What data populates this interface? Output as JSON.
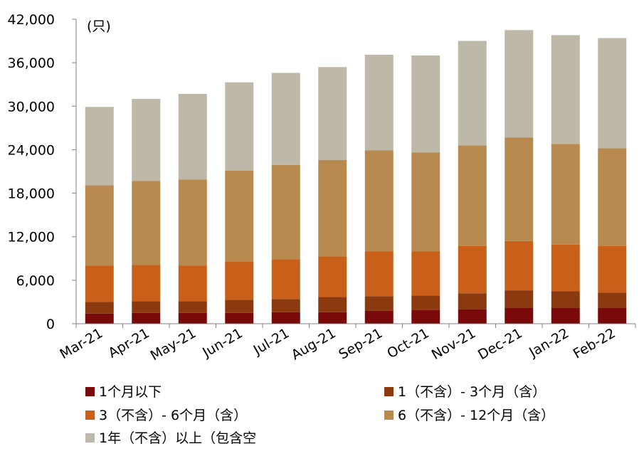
{
  "chart_data": {
    "type": "bar",
    "stacked": true,
    "unit_label": "(只)",
    "categories": [
      "Mar-21",
      "Apr-21",
      "May-21",
      "Jun-21",
      "Jul-21",
      "Aug-21",
      "Sep-21",
      "Oct-21",
      "Nov-21",
      "Dec-21",
      "Jan-22",
      "Feb-22"
    ],
    "y_ticks": [
      "0",
      "6,000",
      "12,000",
      "18,000",
      "24,000",
      "30,000",
      "36,000",
      "42,000"
    ],
    "ylim": [
      0,
      42000
    ],
    "grid": false,
    "legend_position": "bottom",
    "series": [
      {
        "name": "1个月以下",
        "color": "#7a0a0a",
        "values": [
          1400,
          1500,
          1500,
          1500,
          1600,
          1600,
          1800,
          1900,
          2000,
          2200,
          2200,
          2200
        ]
      },
      {
        "name": "1（不含）- 3个月（含）",
        "color": "#8b3a10",
        "values": [
          1600,
          1600,
          1600,
          1800,
          1800,
          2100,
          2000,
          2000,
          2200,
          2400,
          2300,
          2100
        ]
      },
      {
        "name": "3（不含）- 6个月（含）",
        "color": "#c8601a",
        "values": [
          5000,
          5000,
          4900,
          5300,
          5500,
          5600,
          6200,
          6100,
          6500,
          6800,
          6400,
          6400
        ]
      },
      {
        "name": "6（不含）- 12个月（含）",
        "color": "#b98a4f",
        "values": [
          11100,
          11600,
          11900,
          12500,
          13000,
          13300,
          13900,
          13600,
          13900,
          14300,
          13900,
          13500
        ]
      },
      {
        "name": "1年（不含）以上（包含空",
        "color": "#bdb8a8",
        "values": [
          10800,
          11300,
          11800,
          12200,
          12700,
          12800,
          13200,
          13400,
          14400,
          14800,
          15000,
          15200
        ]
      }
    ]
  }
}
